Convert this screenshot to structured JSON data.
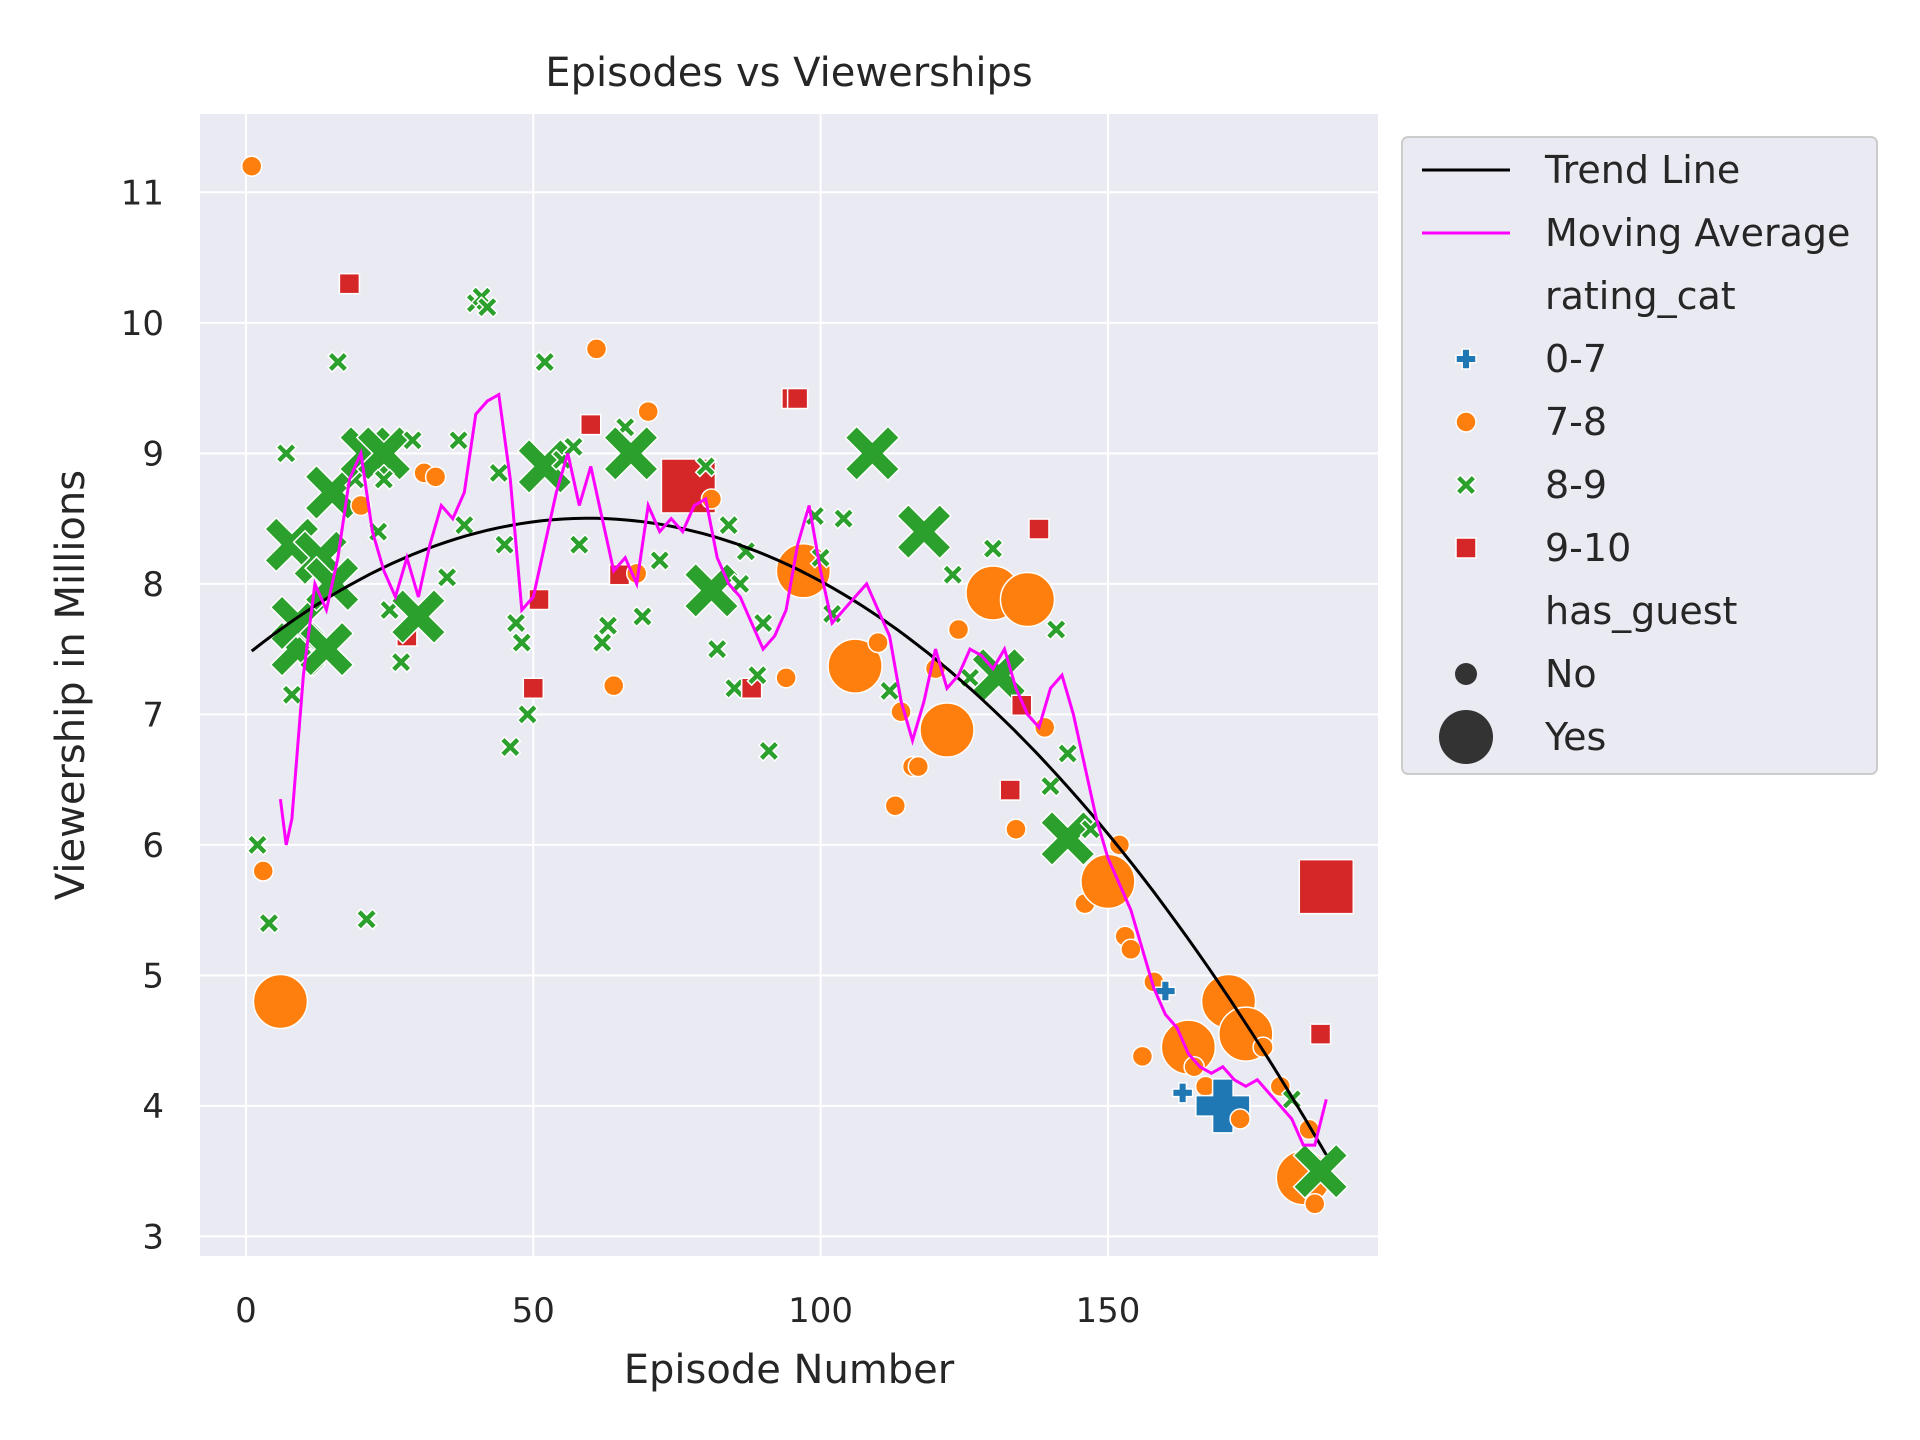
{
  "chart_data": {
    "type": "scatter",
    "title": "Episodes vs Viewerships",
    "xlabel": "Episode Number",
    "ylabel": "Viewership in Millions",
    "xlim": [
      -8,
      197
    ],
    "ylim": [
      2.85,
      11.6
    ],
    "xticks": [
      0,
      50,
      100,
      150
    ],
    "yticks": [
      3,
      4,
      5,
      6,
      7,
      8,
      9,
      10,
      11
    ],
    "grid": true,
    "legend_position": "outside-top-right",
    "colors": {
      "0-7": "#1f77b4",
      "7-8": "#ff7f0e",
      "8-9": "#2ca02c",
      "9-10": "#d62728",
      "trend": "#000000",
      "moving_avg": "#ff00ff",
      "background": "#eaeaf2",
      "grid": "#ffffff"
    },
    "legend": {
      "trend_label": "Trend Line",
      "ma_label": "Moving Average",
      "hue_title": "rating_cat",
      "hue_labels": [
        "0-7",
        "7-8",
        "8-9",
        "9-10"
      ],
      "size_title": "has_guest",
      "size_labels": [
        "No",
        "Yes"
      ]
    },
    "trend_line": {
      "x_range": [
        1,
        188
      ],
      "coefficients": [
        7.45,
        0.0353,
        -0.000296
      ]
    },
    "moving_average": {
      "x": [
        6,
        7,
        8,
        10,
        12,
        14,
        16,
        18,
        20,
        22,
        24,
        26,
        28,
        30,
        32,
        34,
        36,
        38,
        40,
        42,
        44,
        46,
        48,
        50,
        52,
        54,
        56,
        58,
        60,
        62,
        64,
        66,
        68,
        70,
        72,
        74,
        76,
        78,
        80,
        82,
        84,
        86,
        88,
        90,
        92,
        94,
        96,
        98,
        100,
        102,
        104,
        106,
        108,
        110,
        112,
        114,
        116,
        118,
        120,
        122,
        124,
        126,
        128,
        130,
        132,
        134,
        136,
        138,
        140,
        142,
        144,
        146,
        148,
        150,
        152,
        154,
        156,
        158,
        160,
        162,
        164,
        166,
        168,
        170,
        172,
        174,
        176,
        178,
        180,
        182,
        184,
        186,
        188
      ],
      "y": [
        6.35,
        6.0,
        6.2,
        7.3,
        8.0,
        7.8,
        8.2,
        8.8,
        9.0,
        8.4,
        8.1,
        7.9,
        8.2,
        7.9,
        8.3,
        8.6,
        8.5,
        8.7,
        9.3,
        9.4,
        9.45,
        8.8,
        7.8,
        7.9,
        8.3,
        8.7,
        9.0,
        8.6,
        8.9,
        8.5,
        8.1,
        8.2,
        8.0,
        8.6,
        8.4,
        8.5,
        8.4,
        8.6,
        8.65,
        8.2,
        8.0,
        7.9,
        7.7,
        7.5,
        7.6,
        7.8,
        8.3,
        8.6,
        8.1,
        7.7,
        7.8,
        7.9,
        8.0,
        7.8,
        7.6,
        7.1,
        6.8,
        7.1,
        7.5,
        7.2,
        7.3,
        7.5,
        7.45,
        7.35,
        7.5,
        7.2,
        7.0,
        6.9,
        7.2,
        7.3,
        7.0,
        6.6,
        6.2,
        5.9,
        5.7,
        5.5,
        5.2,
        4.9,
        4.7,
        4.6,
        4.4,
        4.3,
        4.25,
        4.3,
        4.2,
        4.15,
        4.2,
        4.1,
        4.0,
        3.9,
        3.7,
        3.7,
        4.05
      ]
    },
    "points": [
      {
        "x": 1,
        "y": 11.2,
        "cat": "7-8",
        "guest": "No"
      },
      {
        "x": 2,
        "y": 6.0,
        "cat": "8-9",
        "guest": "No"
      },
      {
        "x": 3,
        "y": 5.8,
        "cat": "7-8",
        "guest": "No"
      },
      {
        "x": 4,
        "y": 5.4,
        "cat": "8-9",
        "guest": "No"
      },
      {
        "x": 6,
        "y": 4.8,
        "cat": "7-8",
        "guest": "Yes"
      },
      {
        "x": 7,
        "y": 9.0,
        "cat": "8-9",
        "guest": "No"
      },
      {
        "x": 8,
        "y": 7.15,
        "cat": "8-9",
        "guest": "No"
      },
      {
        "x": 8,
        "y": 8.3,
        "cat": "8-9",
        "guest": "Yes"
      },
      {
        "x": 9,
        "y": 7.5,
        "cat": "8-9",
        "guest": "Yes"
      },
      {
        "x": 9,
        "y": 7.7,
        "cat": "8-9",
        "guest": "Yes"
      },
      {
        "x": 13,
        "y": 8.2,
        "cat": "8-9",
        "guest": "Yes"
      },
      {
        "x": 14,
        "y": 7.5,
        "cat": "8-9",
        "guest": "Yes"
      },
      {
        "x": 15,
        "y": 8.7,
        "cat": "8-9",
        "guest": "Yes"
      },
      {
        "x": 15,
        "y": 8.0,
        "cat": "8-9",
        "guest": "Yes"
      },
      {
        "x": 16,
        "y": 9.7,
        "cat": "8-9",
        "guest": "No"
      },
      {
        "x": 18,
        "y": 10.3,
        "cat": "9-10",
        "guest": "No"
      },
      {
        "x": 19,
        "y": 8.8,
        "cat": "8-9",
        "guest": "No"
      },
      {
        "x": 20,
        "y": 8.6,
        "cat": "7-8",
        "guest": "No"
      },
      {
        "x": 21,
        "y": 5.43,
        "cat": "8-9",
        "guest": "No"
      },
      {
        "x": 21,
        "y": 9.0,
        "cat": "8-9",
        "guest": "Yes"
      },
      {
        "x": 24,
        "y": 9.0,
        "cat": "8-9",
        "guest": "Yes"
      },
      {
        "x": 23,
        "y": 8.4,
        "cat": "8-9",
        "guest": "No"
      },
      {
        "x": 24,
        "y": 8.8,
        "cat": "8-9",
        "guest": "No"
      },
      {
        "x": 25,
        "y": 7.8,
        "cat": "8-9",
        "guest": "No"
      },
      {
        "x": 27,
        "y": 7.4,
        "cat": "8-9",
        "guest": "No"
      },
      {
        "x": 28,
        "y": 7.6,
        "cat": "9-10",
        "guest": "No"
      },
      {
        "x": 29,
        "y": 9.1,
        "cat": "8-9",
        "guest": "No"
      },
      {
        "x": 30,
        "y": 7.75,
        "cat": "8-9",
        "guest": "Yes"
      },
      {
        "x": 31,
        "y": 8.85,
        "cat": "7-8",
        "guest": "No"
      },
      {
        "x": 33,
        "y": 8.82,
        "cat": "7-8",
        "guest": "No"
      },
      {
        "x": 35,
        "y": 8.05,
        "cat": "8-9",
        "guest": "No"
      },
      {
        "x": 37,
        "y": 9.1,
        "cat": "8-9",
        "guest": "No"
      },
      {
        "x": 38,
        "y": 8.45,
        "cat": "8-9",
        "guest": "No"
      },
      {
        "x": 40,
        "y": 10.15,
        "cat": "8-9",
        "guest": "No"
      },
      {
        "x": 41,
        "y": 10.2,
        "cat": "8-9",
        "guest": "No"
      },
      {
        "x": 42,
        "y": 10.12,
        "cat": "8-9",
        "guest": "No"
      },
      {
        "x": 44,
        "y": 8.85,
        "cat": "8-9",
        "guest": "No"
      },
      {
        "x": 45,
        "y": 8.3,
        "cat": "8-9",
        "guest": "No"
      },
      {
        "x": 46,
        "y": 6.75,
        "cat": "8-9",
        "guest": "No"
      },
      {
        "x": 47,
        "y": 7.7,
        "cat": "8-9",
        "guest": "No"
      },
      {
        "x": 48,
        "y": 7.55,
        "cat": "8-9",
        "guest": "No"
      },
      {
        "x": 49,
        "y": 7.0,
        "cat": "8-9",
        "guest": "No"
      },
      {
        "x": 50,
        "y": 7.2,
        "cat": "9-10",
        "guest": "No"
      },
      {
        "x": 51,
        "y": 7.88,
        "cat": "9-10",
        "guest": "No"
      },
      {
        "x": 52,
        "y": 9.7,
        "cat": "8-9",
        "guest": "No"
      },
      {
        "x": 52,
        "y": 8.9,
        "cat": "8-9",
        "guest": "Yes"
      },
      {
        "x": 55,
        "y": 8.95,
        "cat": "8-9",
        "guest": "No"
      },
      {
        "x": 57,
        "y": 9.05,
        "cat": "8-9",
        "guest": "No"
      },
      {
        "x": 58,
        "y": 8.3,
        "cat": "8-9",
        "guest": "No"
      },
      {
        "x": 60,
        "y": 9.22,
        "cat": "9-10",
        "guest": "No"
      },
      {
        "x": 61,
        "y": 9.8,
        "cat": "7-8",
        "guest": "No"
      },
      {
        "x": 62,
        "y": 7.55,
        "cat": "8-9",
        "guest": "No"
      },
      {
        "x": 63,
        "y": 7.68,
        "cat": "8-9",
        "guest": "No"
      },
      {
        "x": 64,
        "y": 7.22,
        "cat": "7-8",
        "guest": "No"
      },
      {
        "x": 65,
        "y": 8.07,
        "cat": "9-10",
        "guest": "No"
      },
      {
        "x": 66,
        "y": 9.2,
        "cat": "8-9",
        "guest": "No"
      },
      {
        "x": 67,
        "y": 9.0,
        "cat": "8-9",
        "guest": "Yes"
      },
      {
        "x": 68,
        "y": 8.08,
        "cat": "7-8",
        "guest": "No"
      },
      {
        "x": 69,
        "y": 7.75,
        "cat": "8-9",
        "guest": "No"
      },
      {
        "x": 70,
        "y": 9.32,
        "cat": "7-8",
        "guest": "No"
      },
      {
        "x": 72,
        "y": 8.18,
        "cat": "8-9",
        "guest": "No"
      },
      {
        "x": 77,
        "y": 8.75,
        "cat": "9-10",
        "guest": "Yes"
      },
      {
        "x": 80,
        "y": 8.9,
        "cat": "8-9",
        "guest": "No"
      },
      {
        "x": 81,
        "y": 8.65,
        "cat": "7-8",
        "guest": "No"
      },
      {
        "x": 82,
        "y": 7.5,
        "cat": "8-9",
        "guest": "No"
      },
      {
        "x": 81,
        "y": 7.95,
        "cat": "8-9",
        "guest": "Yes"
      },
      {
        "x": 84,
        "y": 8.45,
        "cat": "8-9",
        "guest": "No"
      },
      {
        "x": 85,
        "y": 7.2,
        "cat": "8-9",
        "guest": "No"
      },
      {
        "x": 86,
        "y": 8.0,
        "cat": "8-9",
        "guest": "No"
      },
      {
        "x": 87,
        "y": 8.25,
        "cat": "8-9",
        "guest": "No"
      },
      {
        "x": 88,
        "y": 7.2,
        "cat": "9-10",
        "guest": "No"
      },
      {
        "x": 89,
        "y": 7.3,
        "cat": "8-9",
        "guest": "No"
      },
      {
        "x": 90,
        "y": 7.7,
        "cat": "8-9",
        "guest": "No"
      },
      {
        "x": 91,
        "y": 6.72,
        "cat": "8-9",
        "guest": "No"
      },
      {
        "x": 94,
        "y": 7.28,
        "cat": "7-8",
        "guest": "No"
      },
      {
        "x": 95,
        "y": 9.42,
        "cat": "9-10",
        "guest": "No"
      },
      {
        "x": 96,
        "y": 9.42,
        "cat": "9-10",
        "guest": "No"
      },
      {
        "x": 97,
        "y": 8.1,
        "cat": "7-8",
        "guest": "Yes"
      },
      {
        "x": 99,
        "y": 8.52,
        "cat": "8-9",
        "guest": "No"
      },
      {
        "x": 100,
        "y": 8.2,
        "cat": "8-9",
        "guest": "No"
      },
      {
        "x": 102,
        "y": 7.77,
        "cat": "8-9",
        "guest": "No"
      },
      {
        "x": 104,
        "y": 8.5,
        "cat": "8-9",
        "guest": "No"
      },
      {
        "x": 106,
        "y": 7.37,
        "cat": "7-8",
        "guest": "Yes"
      },
      {
        "x": 109,
        "y": 9.0,
        "cat": "8-9",
        "guest": "Yes"
      },
      {
        "x": 110,
        "y": 7.55,
        "cat": "7-8",
        "guest": "No"
      },
      {
        "x": 112,
        "y": 7.18,
        "cat": "8-9",
        "guest": "No"
      },
      {
        "x": 113,
        "y": 6.3,
        "cat": "7-8",
        "guest": "No"
      },
      {
        "x": 114,
        "y": 7.02,
        "cat": "7-8",
        "guest": "No"
      },
      {
        "x": 116,
        "y": 6.6,
        "cat": "7-8",
        "guest": "No"
      },
      {
        "x": 117,
        "y": 6.6,
        "cat": "7-8",
        "guest": "No"
      },
      {
        "x": 118,
        "y": 8.4,
        "cat": "8-9",
        "guest": "Yes"
      },
      {
        "x": 120,
        "y": 7.35,
        "cat": "7-8",
        "guest": "No"
      },
      {
        "x": 122,
        "y": 6.88,
        "cat": "7-8",
        "guest": "Yes"
      },
      {
        "x": 123,
        "y": 8.07,
        "cat": "8-9",
        "guest": "No"
      },
      {
        "x": 124,
        "y": 7.65,
        "cat": "7-8",
        "guest": "No"
      },
      {
        "x": 126,
        "y": 7.28,
        "cat": "8-9",
        "guest": "No"
      },
      {
        "x": 130,
        "y": 7.93,
        "cat": "7-8",
        "guest": "Yes"
      },
      {
        "x": 130,
        "y": 8.27,
        "cat": "8-9",
        "guest": "No"
      },
      {
        "x": 131,
        "y": 7.3,
        "cat": "8-9",
        "guest": "Yes"
      },
      {
        "x": 133,
        "y": 6.42,
        "cat": "9-10",
        "guest": "No"
      },
      {
        "x": 134,
        "y": 6.12,
        "cat": "7-8",
        "guest": "No"
      },
      {
        "x": 135,
        "y": 7.07,
        "cat": "9-10",
        "guest": "No"
      },
      {
        "x": 136,
        "y": 7.88,
        "cat": "7-8",
        "guest": "Yes"
      },
      {
        "x": 138,
        "y": 8.42,
        "cat": "9-10",
        "guest": "No"
      },
      {
        "x": 139,
        "y": 6.9,
        "cat": "7-8",
        "guest": "No"
      },
      {
        "x": 140,
        "y": 6.45,
        "cat": "8-9",
        "guest": "No"
      },
      {
        "x": 141,
        "y": 7.65,
        "cat": "8-9",
        "guest": "No"
      },
      {
        "x": 143,
        "y": 6.7,
        "cat": "8-9",
        "guest": "No"
      },
      {
        "x": 143,
        "y": 6.05,
        "cat": "8-9",
        "guest": "Yes"
      },
      {
        "x": 146,
        "y": 5.55,
        "cat": "7-8",
        "guest": "No"
      },
      {
        "x": 147,
        "y": 6.12,
        "cat": "8-9",
        "guest": "No"
      },
      {
        "x": 150,
        "y": 5.72,
        "cat": "7-8",
        "guest": "Yes"
      },
      {
        "x": 152,
        "y": 6.0,
        "cat": "7-8",
        "guest": "No"
      },
      {
        "x": 153,
        "y": 5.3,
        "cat": "7-8",
        "guest": "No"
      },
      {
        "x": 154,
        "y": 5.2,
        "cat": "7-8",
        "guest": "No"
      },
      {
        "x": 156,
        "y": 4.38,
        "cat": "7-8",
        "guest": "No"
      },
      {
        "x": 158,
        "y": 4.95,
        "cat": "7-8",
        "guest": "No"
      },
      {
        "x": 160,
        "y": 4.88,
        "cat": "0-7",
        "guest": "No"
      },
      {
        "x": 163,
        "y": 4.1,
        "cat": "0-7",
        "guest": "No"
      },
      {
        "x": 164,
        "y": 4.45,
        "cat": "7-8",
        "guest": "Yes"
      },
      {
        "x": 165,
        "y": 4.3,
        "cat": "7-8",
        "guest": "No"
      },
      {
        "x": 167,
        "y": 4.15,
        "cat": "7-8",
        "guest": "No"
      },
      {
        "x": 170,
        "y": 4.0,
        "cat": "0-7",
        "guest": "Yes"
      },
      {
        "x": 171,
        "y": 4.8,
        "cat": "7-8",
        "guest": "Yes"
      },
      {
        "x": 173,
        "y": 3.9,
        "cat": "7-8",
        "guest": "No"
      },
      {
        "x": 174,
        "y": 4.55,
        "cat": "7-8",
        "guest": "Yes"
      },
      {
        "x": 177,
        "y": 4.45,
        "cat": "7-8",
        "guest": "No"
      },
      {
        "x": 180,
        "y": 4.15,
        "cat": "7-8",
        "guest": "No"
      },
      {
        "x": 182,
        "y": 4.05,
        "cat": "8-9",
        "guest": "No"
      },
      {
        "x": 184,
        "y": 3.45,
        "cat": "7-8",
        "guest": "Yes"
      },
      {
        "x": 185,
        "y": 3.82,
        "cat": "7-8",
        "guest": "No"
      },
      {
        "x": 186,
        "y": 3.25,
        "cat": "7-8",
        "guest": "No"
      },
      {
        "x": 187,
        "y": 4.55,
        "cat": "9-10",
        "guest": "No"
      },
      {
        "x": 187,
        "y": 3.5,
        "cat": "8-9",
        "guest": "Yes"
      },
      {
        "x": 188,
        "y": 5.68,
        "cat": "9-10",
        "guest": "Yes"
      }
    ]
  }
}
